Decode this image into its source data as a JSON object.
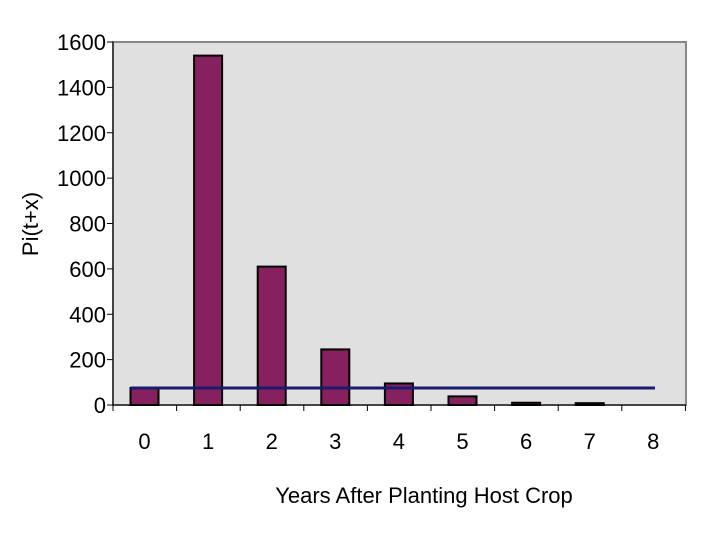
{
  "chart_data": {
    "type": "bar",
    "categories": [
      "0",
      "1",
      "2",
      "3",
      "4",
      "5",
      "6",
      "7",
      "8"
    ],
    "values": [
      75,
      1540,
      610,
      245,
      95,
      38,
      10,
      8,
      0
    ],
    "reference_line": {
      "value": 75
    },
    "title": "",
    "xlabel": "Years After Planting Host Crop",
    "ylabel": "Pi(t+x)",
    "ylim": [
      0,
      1600
    ],
    "yticks": [
      0,
      200,
      400,
      600,
      800,
      1000,
      1200,
      1400,
      1600
    ],
    "grid": false,
    "legend": "none"
  },
  "colors": {
    "plot_background": "#e0e0e0",
    "bar_fill": "#86205e",
    "bar_stroke": "#000000",
    "reference_line": "#1a1a6e",
    "axis": "#000000"
  }
}
